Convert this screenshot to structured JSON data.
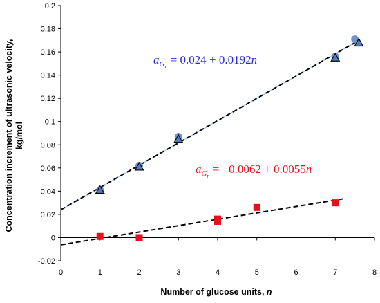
{
  "chart_data": {
    "type": "scatter",
    "xlabel": "Number of glucose units, ",
    "xlabel_var": "n",
    "ylabel_line1": "Concentration increment of ultrasonic velocity,",
    "ylabel_line2": "kg/mol",
    "xlim": [
      0,
      8
    ],
    "ylim": [
      -0.02,
      0.2
    ],
    "xticks": [
      "0",
      "1",
      "2",
      "3",
      "4",
      "5",
      "6",
      "7",
      "8"
    ],
    "yticks": [
      "-0.02",
      "0",
      "0.02",
      "0.04",
      "0.06",
      "0.08",
      "0.1",
      "0.12",
      "0.14",
      "0.16",
      "0.18",
      "0.2"
    ],
    "grid": false,
    "series": [
      {
        "marker": "circle",
        "color": "#6f93cc",
        "points": [
          [
            1,
            0.041
          ],
          [
            2,
            0.062
          ],
          [
            3,
            0.087
          ],
          [
            7,
            0.156
          ],
          [
            7.5,
            0.171
          ]
        ]
      },
      {
        "marker": "triangle",
        "color": "#4f7ec0",
        "points": [
          [
            1,
            0.041
          ],
          [
            2,
            0.061
          ],
          [
            3,
            0.085
          ],
          [
            7,
            0.155
          ],
          [
            7.6,
            0.168
          ]
        ]
      },
      {
        "marker": "square",
        "color": "#e5101c",
        "points": [
          [
            1,
            0.001
          ],
          [
            2,
            0.0
          ],
          [
            4,
            0.016
          ],
          [
            4,
            0.014
          ],
          [
            5,
            0.026
          ],
          [
            7,
            0.03
          ]
        ]
      }
    ],
    "fits": [
      {
        "intercept": 0.024,
        "slope": 0.0192,
        "x_range": [
          0,
          7.6
        ],
        "color": "#4a7fd0",
        "eq_var": "a",
        "eq_sub": "G",
        "eq_subsub": "n",
        "eq_text": " = 0.024 + 0.0192",
        "eq_n": "n"
      },
      {
        "intercept": -0.0062,
        "slope": 0.0055,
        "x_range": [
          0,
          7.2
        ],
        "color": "#e5101c",
        "eq_var": "a",
        "eq_sub": "G",
        "eq_subsub": "n",
        "eq_text": " = −0.0062 + 0.0055",
        "eq_n": "n"
      }
    ],
    "colors": {
      "blue_label": "#2a2ad8",
      "red_label": "#e5101c"
    }
  }
}
